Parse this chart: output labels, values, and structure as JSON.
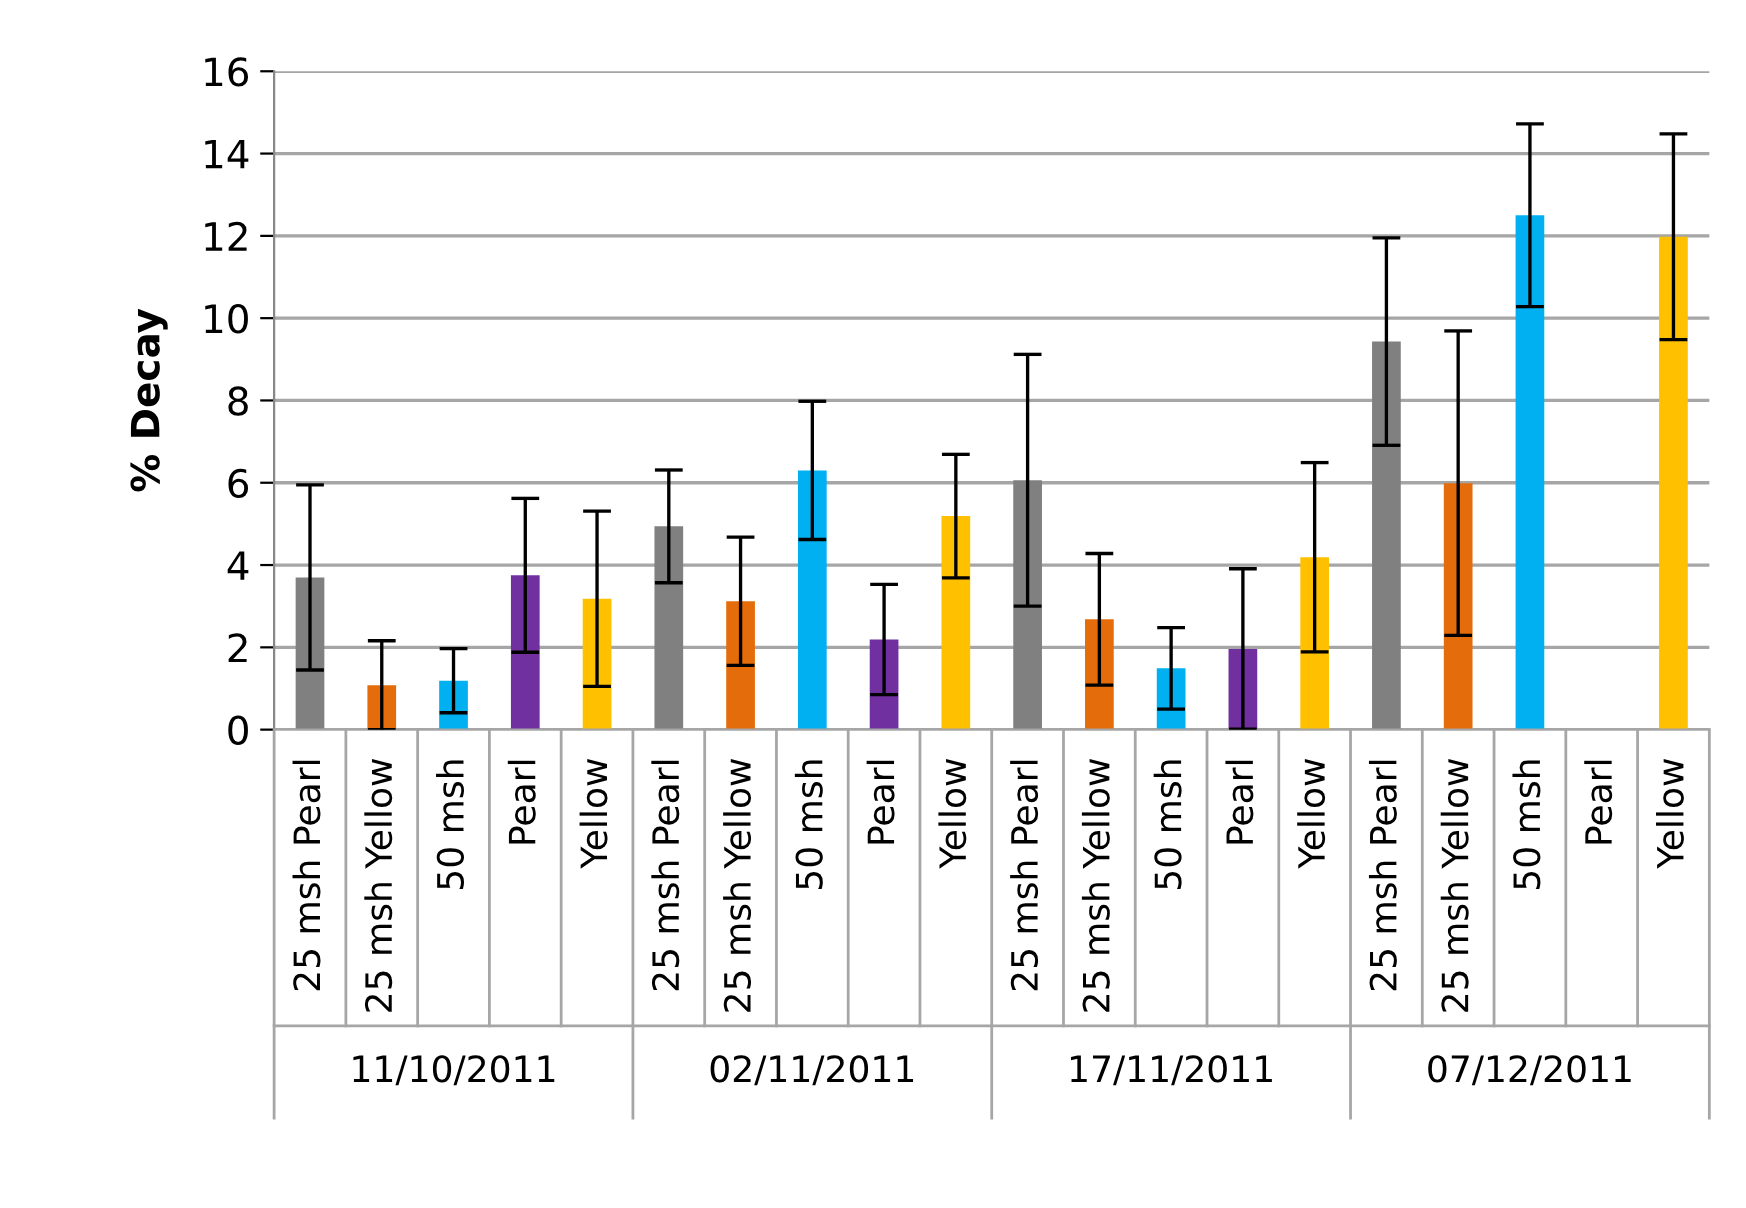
{
  "chart_data": {
    "type": "bar",
    "ylabel": "% Decay",
    "categories": [
      "25 msh Pearl",
      "25 msh Yellow",
      "50 msh",
      "Pearl",
      "Yellow",
      "25 msh Pearl",
      "25 msh Yellow",
      "50 msh",
      "Pearl",
      "Yellow",
      "25 msh Pearl",
      "25 msh Yellow",
      "50 msh",
      "Pearl",
      "Yellow",
      "25 msh Pearl",
      "25 msh Yellow",
      "50 msh",
      "Pearl",
      "Yellow"
    ],
    "values": [
      3.7,
      1.08,
      1.19,
      3.75,
      3.18,
      4.94,
      3.12,
      6.3,
      2.19,
      5.19,
      6.06,
      2.68,
      1.49,
      1.96,
      4.19,
      9.43,
      5.99,
      12.5,
      null,
      11.98
    ],
    "errors": [
      2.25,
      1.08,
      0.78,
      1.87,
      2.13,
      1.37,
      1.56,
      1.68,
      1.34,
      1.5,
      3.06,
      1.6,
      0.99,
      1.95,
      2.3,
      2.52,
      3.7,
      2.22,
      null,
      2.5
    ],
    "colors": [
      "#808080",
      "#e46c0a",
      "#00b0f0",
      "#7030a0",
      "#ffc000",
      "#808080",
      "#e46c0a",
      "#00b0f0",
      "#7030a0",
      "#ffc000",
      "#808080",
      "#e46c0a",
      "#00b0f0",
      "#7030a0",
      "#ffc000",
      "#808080",
      "#e46c0a",
      "#00b0f0",
      "#7030a0",
      "#ffc000"
    ],
    "annotations": [
      "11/10/2011",
      "02/11/2011",
      "17/11/2011",
      "07/12/2011"
    ],
    "ylim": [
      0,
      16
    ],
    "yticks": [
      0,
      2,
      4,
      6,
      8,
      10,
      12,
      14,
      16
    ],
    "grid": "y"
  }
}
